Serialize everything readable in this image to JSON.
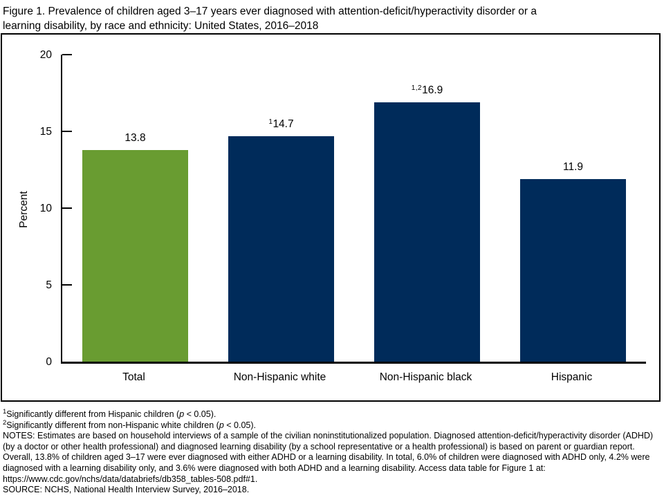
{
  "figure": {
    "title": "Figure 1. Prevalence of children aged 3–17 years ever diagnosed with attention-deficit/hyperactivity disorder or a learning disability, by race and ethnicity: United States, 2016–2018",
    "title_lines": [
      "Figure 1. Prevalence of children aged 3–17 years ever diagnosed with attention-deficit/hyperactivity disorder or a",
      "learning disability, by race and ethnicity: United States, 2016–2018"
    ]
  },
  "chart_data": {
    "type": "bar",
    "title": "Figure 1. Prevalence of children aged 3–17 years ever diagnosed with attention-deficit/hyperactivity disorder or a learning disability, by race and ethnicity: United States, 2016–2018",
    "xlabel": "",
    "ylabel": "Percent",
    "ylim": [
      0,
      20
    ],
    "yticks": [
      0,
      5,
      10,
      15,
      20
    ],
    "grid": false,
    "legend": "none",
    "categories": [
      "Total",
      "Non-Hispanic white",
      "Non-Hispanic black",
      "Hispanic"
    ],
    "values": [
      13.8,
      14.7,
      16.9,
      11.9
    ],
    "value_labels": [
      "13.8",
      "14.7",
      "16.9",
      "11.9"
    ],
    "value_superscripts": [
      "",
      "1",
      "1,2",
      ""
    ],
    "bar_colors": [
      "#699C31",
      "#002B5A",
      "#002B5A",
      "#002B5A"
    ]
  },
  "colors": {
    "total_bar": "#699C31",
    "race_bars": "#002B5A",
    "axis": "#000000"
  },
  "footnotes": {
    "lines": [
      {
        "sup": "1",
        "before": "Significantly different from Hispanic children (",
        "italic": "p",
        "after": " < 0.05)."
      },
      {
        "sup": "2",
        "before": "Significantly different from non-Hispanic white children (",
        "italic": "p",
        "after": " < 0.05)."
      }
    ],
    "notes": "NOTES: Estimates are based on household interviews of a sample of the civilian noninstitutionalized population. Diagnosed attention-deficit/hyperactivity disorder (ADHD) (by a doctor or other health professional) and diagnosed learning disability (by a school representative or a health professional) is based on parent or guardian report. Overall, 13.8% of children aged 3–17 were ever diagnosed with either ADHD or a learning disability. In total, 6.0% of children were diagnosed with ADHD only, 4.2% were diagnosed with a learning disability only, and 3.6% were diagnosed with both ADHD and a learning disability. Access data table for Figure 1 at: https://www.cdc.gov/nchs/data/databriefs/db358_tables-508.pdf#1.",
    "source": "SOURCE: NCHS, National Health Interview Survey, 2016–2018."
  }
}
